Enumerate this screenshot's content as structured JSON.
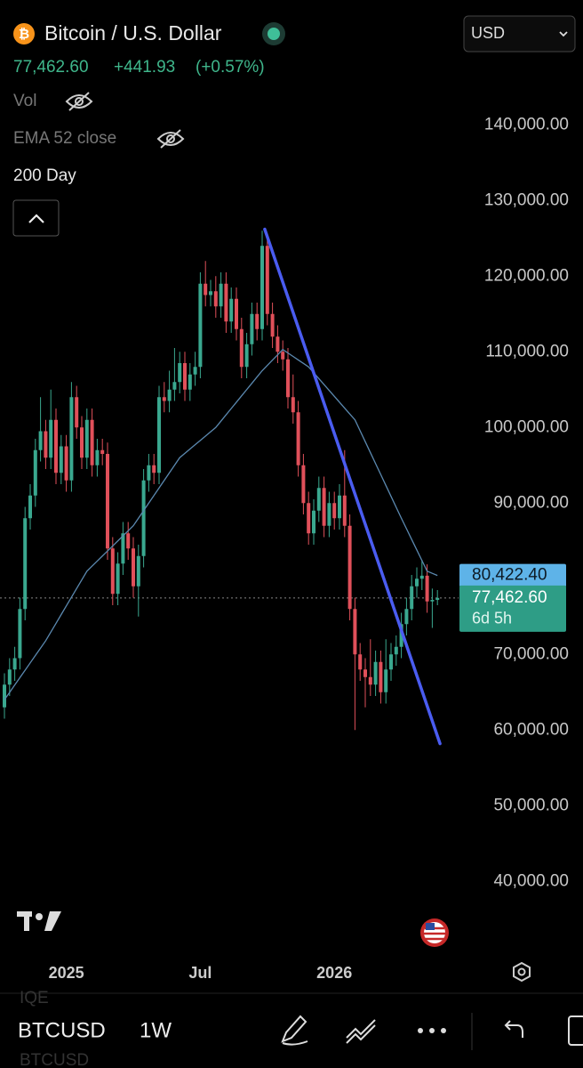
{
  "header": {
    "symbol_name": "Bitcoin / U.S. Dollar",
    "price": "77,462.60",
    "change": "+441.93",
    "change_pct": "(+0.57%)",
    "currency": "USD"
  },
  "legend": {
    "vol": "Vol",
    "study": "200 Day"
  },
  "toolbar": {
    "symbol": "BTCUSD",
    "interval": "1W",
    "ghost_top": "IQE",
    "ghost_bottom": "BTCUSD"
  },
  "chart_data": {
    "type": "candlestick",
    "up_color": "#3aa88f",
    "down_color": "#e0505a",
    "categories": [
      null,
      null,
      null,
      null,
      null,
      null,
      null,
      null,
      null,
      null,
      null,
      null,
      "2025",
      null,
      null,
      null,
      null,
      null,
      null,
      null,
      null,
      null,
      null,
      null,
      null,
      null,
      null,
      null,
      null,
      null,
      null,
      null,
      null,
      null,
      null,
      null,
      null,
      null,
      "Jul",
      null,
      null,
      null,
      null,
      null,
      null,
      null,
      null,
      null,
      null,
      null,
      null,
      null,
      null,
      null,
      null,
      null,
      null,
      null,
      null,
      null,
      null,
      null,
      null,
      null,
      "2026",
      null,
      null,
      null,
      null,
      null,
      null,
      null,
      null,
      null,
      null,
      null,
      null,
      null,
      null,
      null,
      null,
      null,
      null,
      null,
      null
    ],
    "open": [
      63000,
      66000,
      68000,
      69500,
      76000,
      88000,
      91000,
      97000,
      99500,
      96000,
      101000,
      94000,
      97500,
      93000,
      104000,
      100000,
      96000,
      101000,
      95000,
      97000,
      96500,
      84000,
      78000,
      82000,
      86000,
      84000,
      79000,
      83000,
      93000,
      95000,
      94000,
      104000,
      103500,
      105000,
      106000,
      108500,
      105000,
      107000,
      108000,
      119000,
      117500,
      118000,
      116000,
      119000,
      114000,
      117000,
      113000,
      108000,
      111000,
      115000,
      113000,
      124000,
      115000,
      112000,
      110000,
      109000,
      104000,
      102000,
      95000,
      90000,
      86000,
      89000,
      92000,
      87000,
      90000,
      88000,
      91000,
      87000,
      76000,
      70000,
      68000,
      67000,
      66000,
      69000,
      65000,
      68000,
      70000,
      71000,
      74000,
      76000,
      79000,
      80000,
      80400,
      77000,
      77200
    ],
    "high": [
      67500,
      69500,
      71000,
      77500,
      89500,
      92500,
      98500,
      104000,
      101000,
      105000,
      102500,
      99000,
      99000,
      106000,
      105500,
      101500,
      102500,
      102500,
      98500,
      98500,
      98000,
      85500,
      83500,
      87500,
      87500,
      85500,
      84500,
      94500,
      96500,
      96500,
      105500,
      106000,
      107500,
      110500,
      110000,
      110000,
      108500,
      110000,
      120500,
      122000,
      119500,
      120000,
      120500,
      120500,
      118500,
      118500,
      114500,
      112500,
      116500,
      116500,
      126000,
      125500,
      116500,
      113500,
      111500,
      110500,
      107000,
      103500,
      96500,
      91500,
      90500,
      93500,
      93500,
      91500,
      91500,
      92500,
      97000,
      88500,
      77500,
      71500,
      69500,
      72000,
      70500,
      70500,
      72000,
      71500,
      72500,
      75500,
      77500,
      80500,
      81500,
      82500,
      81900,
      78700,
      78500
    ],
    "low": [
      61500,
      64500,
      66500,
      68000,
      74500,
      86500,
      89500,
      95500,
      94500,
      94500,
      92500,
      92500,
      91500,
      91500,
      98500,
      94500,
      94500,
      93500,
      93500,
      95000,
      82500,
      76500,
      76500,
      80500,
      82500,
      77500,
      75000,
      81500,
      91500,
      92500,
      92500,
      102000,
      102000,
      103500,
      104500,
      103500,
      103500,
      105500,
      106500,
      116000,
      116000,
      114500,
      114500,
      112500,
      112500,
      111500,
      106500,
      106500,
      109500,
      111500,
      111500,
      113500,
      110500,
      108500,
      107500,
      102500,
      100500,
      93500,
      88500,
      84500,
      84500,
      87500,
      85500,
      85500,
      86500,
      86500,
      85500,
      74500,
      60000,
      66500,
      63000,
      64500,
      64500,
      63500,
      63500,
      66500,
      68500,
      69500,
      72500,
      74500,
      77500,
      78500,
      75500,
      73500,
      76500
    ],
    "close": [
      66000,
      68000,
      69500,
      76000,
      88000,
      91000,
      97000,
      99500,
      96000,
      101000,
      94000,
      97500,
      93000,
      104000,
      100000,
      96000,
      101000,
      95000,
      97000,
      96500,
      84000,
      78000,
      82000,
      86000,
      84000,
      79000,
      83000,
      93000,
      95000,
      94000,
      104000,
      103500,
      105000,
      106000,
      108500,
      105000,
      107000,
      108000,
      119000,
      117500,
      118000,
      116000,
      119000,
      114000,
      117000,
      113000,
      108000,
      111000,
      115000,
      113000,
      124000,
      115000,
      112000,
      110000,
      109000,
      104000,
      102000,
      95000,
      90000,
      86000,
      89000,
      92000,
      87000,
      90000,
      88000,
      91000,
      87000,
      76000,
      70000,
      68000,
      67000,
      66000,
      69000,
      65000,
      68000,
      70000,
      71000,
      74000,
      76000,
      79000,
      80000,
      80400,
      77000,
      77200,
      77462.6
    ],
    "ema": {
      "name": "EMA 52 close",
      "color": "#5b89b0",
      "values": [
        64000,
        64975,
        65950,
        66925,
        67900,
        68875,
        69850,
        70825,
        71800,
        72950,
        74100,
        75250,
        76400,
        77550,
        78700,
        79850,
        81000,
        81667,
        82333,
        83000,
        83667,
        84333,
        85000,
        85667,
        86333,
        87000,
        88000,
        89000,
        90000,
        91000,
        92000,
        93000,
        94000,
        95000,
        96000,
        96571,
        97143,
        97714,
        98286,
        98857,
        99429,
        100000,
        100833,
        101667,
        102500,
        103333,
        104167,
        105000,
        105833,
        106667,
        107500,
        108200,
        108900,
        109600,
        110300,
        109840,
        109380,
        108920,
        108460,
        108000,
        107222,
        106444,
        105667,
        104889,
        104111,
        103333,
        102556,
        101778,
        101000,
        99556,
        98111,
        96667,
        95222,
        93778,
        92333,
        90889,
        89444,
        88000,
        86600,
        85200,
        83800,
        82400,
        81000,
        80711,
        80422.4
      ]
    },
    "trendline": {
      "color": "#4a5cf0",
      "x": [
        50.5,
        84.5
      ],
      "values": [
        126200,
        58200
      ]
    },
    "ema_label": {
      "value": 80422.4,
      "label": "80,422.40",
      "color": "#5eb3e8"
    },
    "last_price": {
      "value": 77462.6,
      "label": "77,462.60",
      "countdown": "6d 5h",
      "color": "#2e9d86"
    },
    "ylim": [
      30000,
      156500
    ],
    "yticks": [
      {
        "value": 40000,
        "label": "40,000.00"
      },
      {
        "value": 50000,
        "label": "50,000.00"
      },
      {
        "value": 60000,
        "label": "60,000.00"
      },
      {
        "value": 70000,
        "label": "70,000.00"
      },
      {
        "value": 90000,
        "label": "90,000.00"
      },
      {
        "value": 100000,
        "label": "100,000.00"
      },
      {
        "value": 110000,
        "label": "110,000.00"
      },
      {
        "value": 120000,
        "label": "120,000.00"
      },
      {
        "value": 130000,
        "label": "130,000.00"
      },
      {
        "value": 140000,
        "label": "140,000.00"
      }
    ]
  }
}
